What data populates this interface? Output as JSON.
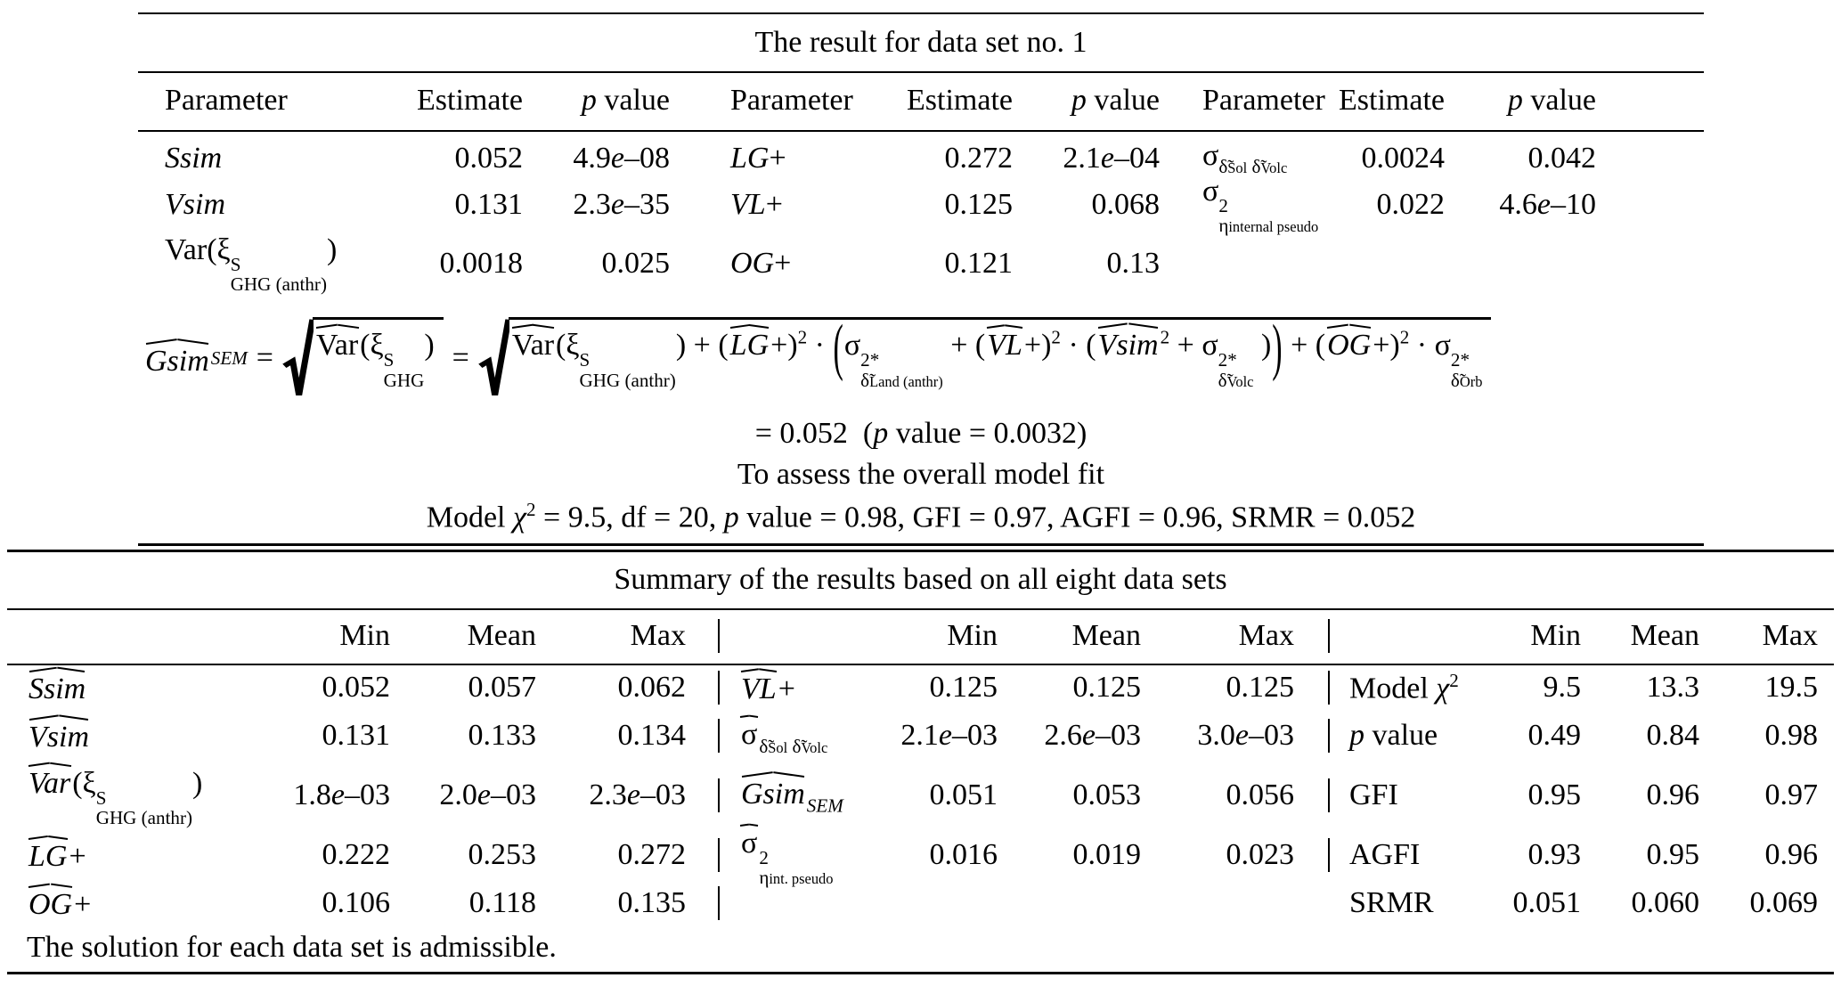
{
  "table1": {
    "title": "The result for data set no. 1",
    "col_headers": {
      "parameter": "Parameter",
      "estimate": "Estimate",
      "p_value": "<i>p</i> value"
    },
    "groups": [
      {
        "rows": [
          {
            "param": "<i>Ssim</i>",
            "est": "0.052",
            "p": "4.9<i>e</i>–08"
          },
          {
            "param": "<i>Vsim</i>",
            "est": "0.131",
            "p": "2.3<i>e</i>–35"
          },
          {
            "param": "Var(ξ<span class='ss'><span>S</span><span>GHG&nbsp;(anthr)</span></span>)",
            "est": "0.0018",
            "p": "0.025"
          }
        ]
      },
      {
        "rows": [
          {
            "param": "<i>LG</i>+",
            "est": "0.272",
            "p": "2.1<i>e</i>–04"
          },
          {
            "param": "<i>VL</i>+",
            "est": "0.125",
            "p": "0.068"
          },
          {
            "param": "<i>OG</i>+",
            "est": "0.121",
            "p": "0.13"
          }
        ]
      },
      {
        "rows": [
          {
            "param": "σ<span class='subsc'>δ̃<span class='tiny'>Sol</span> δ̃<span class='tiny'>Volc</span></span>",
            "est": "0.0024",
            "p": "0.042"
          },
          {
            "param": "σ<span class='ss'><span>2</span><span>η<span class='tiny'>internal pseudo</span></span></span>",
            "est": "0.022",
            "p": "4.6<i>e</i>–10"
          },
          {
            "param": "",
            "est": "",
            "p": ""
          }
        ]
      }
    ],
    "equation_html": "<span class='hatw it'>Gsim</span><span class='subsc it'>SEM</span><span class='op'>=</span><span class='sqrt'><svg class='radsvg' viewBox='0 0 30 100' preserveAspectRatio='none'><path d='M2 60 L10 54 L16 96 L29 3' fill='none' stroke='#000' stroke-width='6'/></svg><span class='hatw'>Var</span>(ξ<span class='ss'><span>S</span><span>GHG</span></span>)</span><span class='op'>=</span><span class='sqrt'><svg class='radsvg' viewBox='0 0 30 100' preserveAspectRatio='none'><path d='M2 60 L10 54 L16 96 L29 3' fill='none' stroke='#000' stroke-width='6'/></svg><span class='hatw'>Var</span>(ξ<span class='ss'><span>S</span><span>GHG&nbsp;(anthr)</span></span>)&nbsp;+&nbsp;(<span class='hatw it'>LG</span>+)<sup>2</sup> · <span class='bigp'>(</span>σ<span class='ss'><span>2*</span><span>δ̃<span class='tiny'>Land&nbsp;(anthr)</span></span></span>&nbsp;+&nbsp;(<span class='hatw it'>VL</span>+)<sup>2</sup> · (<span class='hatw it'>Vsim</span><sup>2</sup>&nbsp;+&nbsp;σ<span class='ss'><span>2*</span><span>δ̃<span class='tiny'>Volc</span></span></span>&nbsp;)<span class='bigp'>)</span>&nbsp;+&nbsp;(<span class='hatw it'>OG</span>+)<sup>2</sup> · σ<span class='ss'><span>2*</span><span>δ̃<span class='tiny'>Orb</span></span></span></span>",
    "equation_result_html": "= 0.052&nbsp;&nbsp;(<i>p</i> value = 0.0032)",
    "fit_note": "To assess the overall model fit",
    "fit_stats_html": "Model <i>χ</i><sup>2</sup> = 9.5, df = 20, <i>p</i> value = 0.98, GFI = 0.97, AGFI = 0.96, SRMR = 0.052"
  },
  "table2": {
    "title": "Summary of the results based on all eight data sets",
    "col_headers": {
      "min": "Min",
      "mean": "Mean",
      "max": "Max"
    },
    "sections": [
      {
        "rows": [
          {
            "label": "<span class='hatw it'>Ssim</span>",
            "min": "0.052",
            "mean": "0.057",
            "max": "0.062"
          },
          {
            "label": "<span class='hatw it'>Vsim</span>",
            "min": "0.131",
            "mean": "0.133",
            "max": "0.134"
          },
          {
            "label": "<span class='hatw it'>Var</span>(ξ<span class='ss'><span>S</span><span>GHG&nbsp;(anthr)</span></span>)",
            "min": "1.8<i>e</i>–03",
            "mean": "2.0<i>e</i>–03",
            "max": "2.3<i>e</i>–03"
          },
          {
            "label": "<span class='hatw it'>LG</span>+",
            "min": "0.222",
            "mean": "0.253",
            "max": "0.272"
          },
          {
            "label": "<span class='hatw it'>OG</span>+",
            "min": "0.106",
            "mean": "0.118",
            "max": "0.135"
          }
        ]
      },
      {
        "rows": [
          {
            "label": "<span class='hatw it'>VL</span>+",
            "min": "0.125",
            "mean": "0.125",
            "max": "0.125"
          },
          {
            "label": "<span class='hatw'>σ</span><span class='subsc'>δ̃<span class='tiny'>Sol</span> δ̃<span class='tiny'>Volc</span></span>",
            "min": "2.1<i>e</i>–03",
            "mean": "2.6<i>e</i>–03",
            "max": "3.0<i>e</i>–03"
          },
          {
            "label": "<span class='hatw it'>Gsim</span><span class='subsc it'>SEM</span>",
            "min": "0.051",
            "mean": "0.053",
            "max": "0.056"
          },
          {
            "label": "<span class='hatw'>σ</span><span class='ss'><span>2</span><span>η<span class='tiny'>int.&nbsp;pseudo</span></span></span>",
            "min": "0.016",
            "mean": "0.019",
            "max": "0.023"
          },
          {
            "label": "",
            "min": "",
            "mean": "",
            "max": ""
          }
        ]
      },
      {
        "rows": [
          {
            "label": "Model <i>χ</i><sup>2</sup>",
            "min": "9.5",
            "mean": "13.3",
            "max": "19.5"
          },
          {
            "label": "<i>p</i> value",
            "min": "0.49",
            "mean": "0.84",
            "max": "0.98"
          },
          {
            "label": "GFI",
            "min": "0.95",
            "mean": "0.96",
            "max": "0.97"
          },
          {
            "label": "AGFI",
            "min": "0.93",
            "mean": "0.95",
            "max": "0.96"
          },
          {
            "label": "SRMR",
            "min": "0.051",
            "mean": "0.060",
            "max": "0.069"
          }
        ]
      }
    ],
    "footnote": "The solution for each data set is admissible."
  }
}
